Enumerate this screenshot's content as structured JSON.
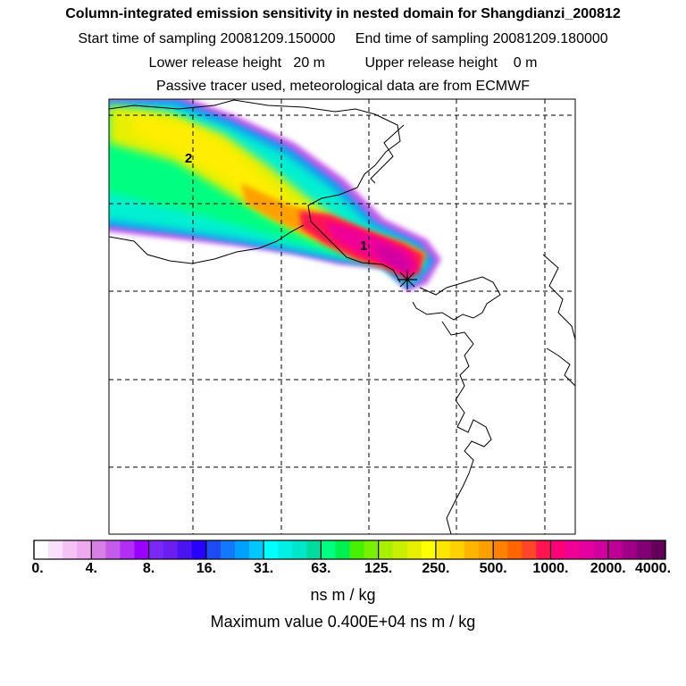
{
  "header": {
    "title": "Column-integrated emission sensitivity in nested domain for Shangdianzi_200812",
    "line2_left": "Start time of sampling 20081209.150000",
    "line2_right": "End time of sampling 20081209.180000",
    "line3_left": "Lower release height   20 m",
    "line3_right": "Upper release height    0 m",
    "line4": "Passive tracer used, meteorological data are from ECMWF"
  },
  "map": {
    "markers": [
      "1",
      "2"
    ],
    "receptor_symbol": "✳",
    "colors": {
      "frame": "#000000",
      "grid": "#000000",
      "coast": "#000000"
    }
  },
  "colorbar": {
    "tick_labels": [
      "0.",
      "4.",
      "8.",
      "16.",
      "31.",
      "63.",
      "125.",
      "250.",
      "500.",
      "1000.",
      "2000.",
      "4000."
    ],
    "colors": [
      "#ffffff",
      "#fbe0fb",
      "#f4c2f4",
      "#eeaaee",
      "#d77fe5",
      "#c35ceb",
      "#b22ef2",
      "#9900ff",
      "#7a28f5",
      "#6a1ef2",
      "#4a14f0",
      "#2800ff",
      "#1e4bf5",
      "#1478fa",
      "#00a0ff",
      "#00c8ff",
      "#00ffff",
      "#00f0e6",
      "#00e6c8",
      "#00dca0",
      "#00ff80",
      "#00f050",
      "#46f000",
      "#78f000",
      "#aaf000",
      "#c8f000",
      "#e6f000",
      "#ffff00",
      "#ffe600",
      "#ffd200",
      "#ffb400",
      "#ffa000",
      "#ff8200",
      "#ff6400",
      "#ff4628",
      "#ff1450",
      "#ff0078",
      "#f00096",
      "#e600a0",
      "#d200a0",
      "#be0096",
      "#a00087",
      "#820073",
      "#64005a"
    ],
    "unit": "ns m / kg",
    "max_label": "Maximum value  0.400E+04 ns m / kg"
  }
}
